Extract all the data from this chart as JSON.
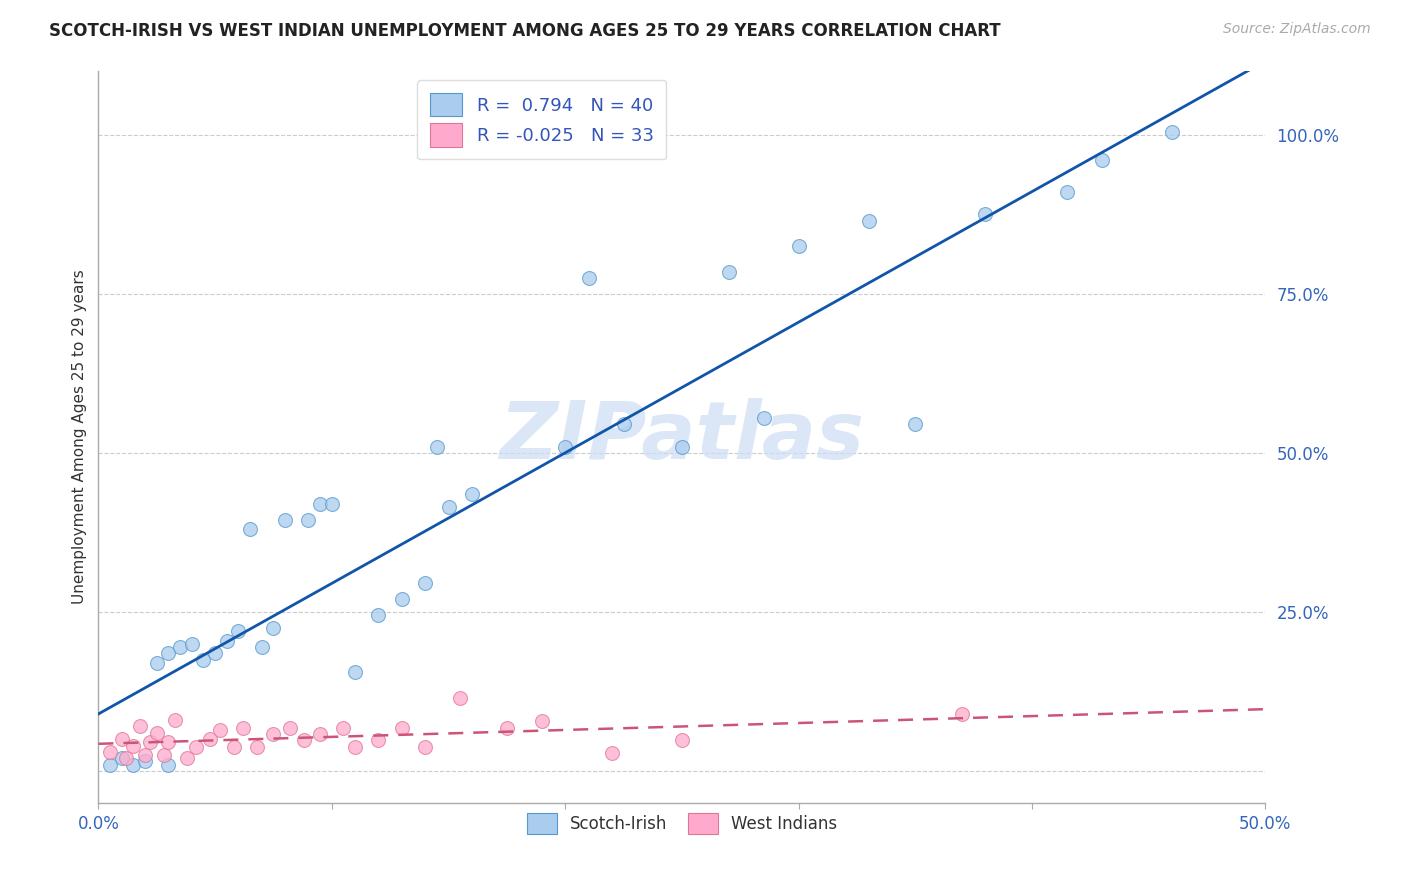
{
  "title": "SCOTCH-IRISH VS WEST INDIAN UNEMPLOYMENT AMONG AGES 25 TO 29 YEARS CORRELATION CHART",
  "source": "Source: ZipAtlas.com",
  "ylabel_label": "Unemployment Among Ages 25 to 29 years",
  "xlim": [
    0.0,
    0.5
  ],
  "ylim": [
    -0.05,
    1.1
  ],
  "xtick_positions": [
    0.0,
    0.1,
    0.2,
    0.3,
    0.4,
    0.5
  ],
  "xticklabels": [
    "0.0%",
    "",
    "",
    "",
    "",
    "50.0%"
  ],
  "ytick_positions": [
    0.0,
    0.25,
    0.5,
    0.75,
    1.0
  ],
  "yticklabels": [
    "",
    "25.0%",
    "50.0%",
    "75.0%",
    "100.0%"
  ],
  "r1": 0.794,
  "n1": 40,
  "r2": -0.025,
  "n2": 33,
  "color_blue_fill": "#aaccee",
  "color_blue_edge": "#5599cc",
  "color_pink_fill": "#ffaacc",
  "color_pink_edge": "#dd7799",
  "color_line_blue": "#1155aa",
  "color_line_pink": "#cc5577",
  "watermark_text": "ZIPatlas",
  "watermark_color": "#ccddf5",
  "scotch_irish_x": [
    0.005,
    0.01,
    0.015,
    0.02,
    0.025,
    0.03,
    0.03,
    0.035,
    0.04,
    0.045,
    0.05,
    0.055,
    0.06,
    0.065,
    0.07,
    0.075,
    0.08,
    0.09,
    0.095,
    0.1,
    0.11,
    0.12,
    0.13,
    0.14,
    0.145,
    0.15,
    0.16,
    0.2,
    0.21,
    0.225,
    0.25,
    0.27,
    0.285,
    0.3,
    0.33,
    0.35,
    0.38,
    0.415,
    0.43,
    0.46
  ],
  "scotch_irish_y": [
    0.01,
    0.02,
    0.01,
    0.015,
    0.17,
    0.185,
    0.01,
    0.195,
    0.2,
    0.175,
    0.185,
    0.205,
    0.22,
    0.38,
    0.195,
    0.225,
    0.395,
    0.395,
    0.42,
    0.42,
    0.155,
    0.245,
    0.27,
    0.295,
    0.51,
    0.415,
    0.435,
    0.51,
    0.775,
    0.545,
    0.51,
    0.785,
    0.555,
    0.825,
    0.865,
    0.545,
    0.875,
    0.91,
    0.96,
    1.005
  ],
  "west_indian_x": [
    0.005,
    0.01,
    0.012,
    0.015,
    0.018,
    0.02,
    0.022,
    0.025,
    0.028,
    0.03,
    0.033,
    0.038,
    0.042,
    0.048,
    0.052,
    0.058,
    0.062,
    0.068,
    0.075,
    0.082,
    0.088,
    0.095,
    0.105,
    0.11,
    0.12,
    0.13,
    0.14,
    0.155,
    0.175,
    0.19,
    0.22,
    0.25,
    0.37
  ],
  "west_indian_y": [
    0.03,
    0.05,
    0.02,
    0.04,
    0.07,
    0.025,
    0.045,
    0.06,
    0.025,
    0.045,
    0.08,
    0.02,
    0.038,
    0.05,
    0.065,
    0.038,
    0.068,
    0.038,
    0.058,
    0.068,
    0.048,
    0.058,
    0.068,
    0.038,
    0.048,
    0.068,
    0.038,
    0.115,
    0.068,
    0.078,
    0.028,
    0.048,
    0.09
  ]
}
